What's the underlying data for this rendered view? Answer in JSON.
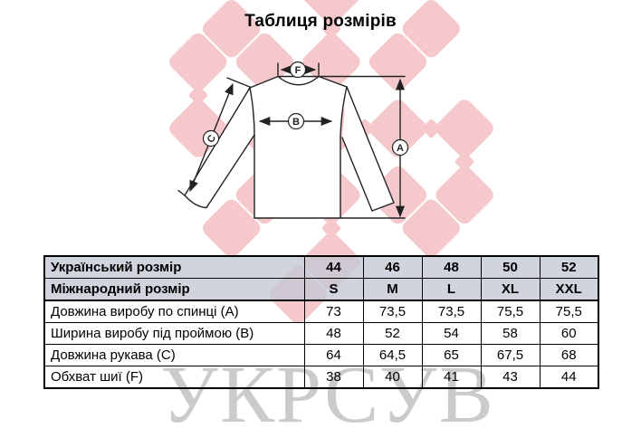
{
  "title": "Таблиця розмірів",
  "watermark": {
    "text": "УКРСУВ",
    "pattern_color": "#f5c9cb",
    "text_color": "#cbcbcb"
  },
  "diagram": {
    "label_a": "A",
    "label_b": "B",
    "label_c": "C",
    "label_f": "F",
    "line_color": "#222222"
  },
  "table": {
    "header_rows": [
      {
        "label": "Український розмір",
        "values": [
          "44",
          "46",
          "48",
          "50",
          "52"
        ]
      },
      {
        "label": "Міжнародний розмір",
        "values": [
          "S",
          "M",
          "L",
          "XL",
          "XXL"
        ]
      }
    ],
    "rows": [
      {
        "label": "Довжина виробу по спинці (A)",
        "values": [
          "73",
          "73,5",
          "73,5",
          "75,5",
          "75,5"
        ]
      },
      {
        "label": "Ширина виробу під проймою (B)",
        "values": [
          "48",
          "52",
          "54",
          "58",
          "60"
        ]
      },
      {
        "label": "Довжина рукава (C)",
        "values": [
          "64",
          "64,5",
          "65",
          "67,5",
          "68"
        ]
      },
      {
        "label": "Обхват шиї (F)",
        "values": [
          "38",
          "40",
          "41",
          "43",
          "44"
        ]
      }
    ]
  }
}
